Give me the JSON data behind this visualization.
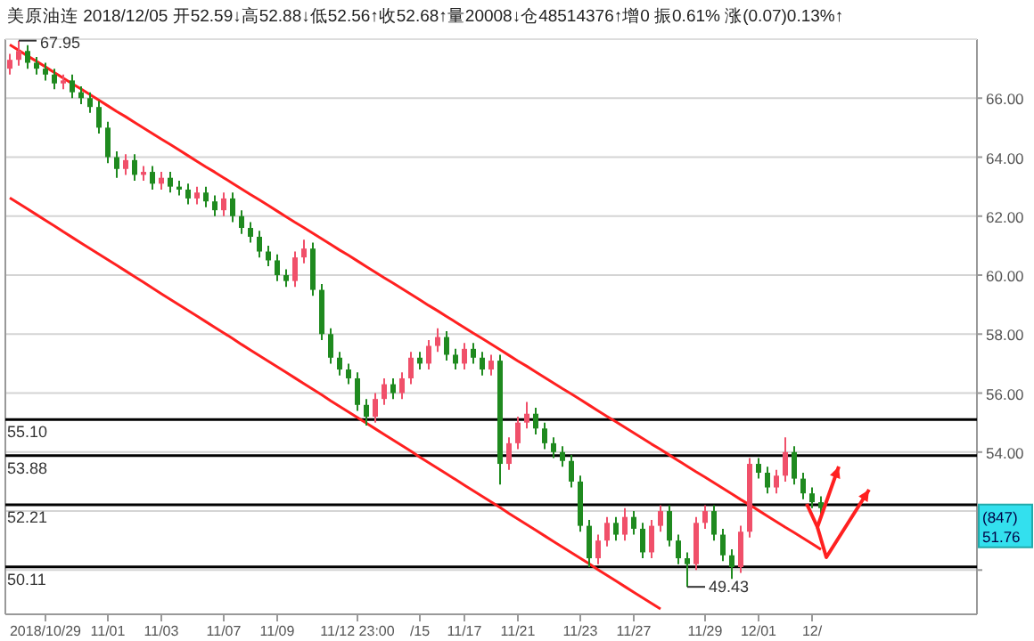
{
  "chart_data": {
    "type": "candlestick",
    "title": "美原油连 2018/12/05 开52.59↓高52.88↓低52.56↑收52.68↑量20008↓仓48514376↑增0 振0.61% 涨(0.07)0.13%↑",
    "categories": [
      null,
      null,
      null,
      null,
      "2018/10/29",
      null,
      null,
      null,
      null,
      null,
      null,
      "11/01",
      null,
      null,
      null,
      null,
      null,
      "11/03",
      null,
      null,
      null,
      null,
      null,
      null,
      "11/07",
      null,
      null,
      null,
      null,
      null,
      "11/09",
      null,
      null,
      null,
      null,
      null,
      null,
      null,
      null,
      "11/12 23:00",
      null,
      null,
      null,
      null,
      null,
      null,
      "/15",
      null,
      null,
      null,
      null,
      "11/17",
      null,
      null,
      null,
      null,
      null,
      "11/21",
      null,
      null,
      null,
      null,
      null,
      null,
      "11/23",
      null,
      null,
      null,
      null,
      null,
      "11/27",
      null,
      null,
      null,
      null,
      null,
      null,
      null,
      "11/29",
      null,
      null,
      null,
      null,
      null,
      "12/01",
      null,
      null,
      null,
      null,
      null,
      "12/",
      null,
      null,
      null,
      null,
      null,
      null,
      null,
      null,
      null,
      null,
      null,
      null,
      null,
      null,
      null,
      null,
      null,
      null
    ],
    "ohlc": [
      [
        67.0,
        67.5,
        66.8,
        67.3
      ],
      [
        67.3,
        67.95,
        67.1,
        67.6
      ],
      [
        67.6,
        67.8,
        67.0,
        67.2
      ],
      [
        67.2,
        67.4,
        66.8,
        67.0
      ],
      [
        67.0,
        67.2,
        66.6,
        66.8
      ],
      [
        66.8,
        67.0,
        66.3,
        66.5
      ],
      [
        66.5,
        66.8,
        66.3,
        66.6
      ],
      [
        66.6,
        66.8,
        66.0,
        66.2
      ],
      [
        66.2,
        66.4,
        65.8,
        66.0
      ],
      [
        66.0,
        66.2,
        65.5,
        65.7
      ],
      [
        65.7,
        65.9,
        64.8,
        65.0
      ],
      [
        65.0,
        65.2,
        63.8,
        64.0
      ],
      [
        64.0,
        64.2,
        63.3,
        63.6
      ],
      [
        63.6,
        64.1,
        63.4,
        63.9
      ],
      [
        63.9,
        64.1,
        63.2,
        63.4
      ],
      [
        63.4,
        63.7,
        63.2,
        63.5
      ],
      [
        63.5,
        63.7,
        62.9,
        63.1
      ],
      [
        63.1,
        63.5,
        62.9,
        63.3
      ],
      [
        63.3,
        63.5,
        62.8,
        63.0
      ],
      [
        63.0,
        63.2,
        62.7,
        62.9
      ],
      [
        62.9,
        63.1,
        62.4,
        62.6
      ],
      [
        62.6,
        63.0,
        62.4,
        62.8
      ],
      [
        62.8,
        63.0,
        62.3,
        62.5
      ],
      [
        62.5,
        62.7,
        62.0,
        62.2
      ],
      [
        62.2,
        62.8,
        62.0,
        62.6
      ],
      [
        62.6,
        62.8,
        61.8,
        62.0
      ],
      [
        62.0,
        62.2,
        61.4,
        61.6
      ],
      [
        61.6,
        61.8,
        61.1,
        61.3
      ],
      [
        61.3,
        61.5,
        60.6,
        60.8
      ],
      [
        60.8,
        61.0,
        60.3,
        60.5
      ],
      [
        60.5,
        60.7,
        59.8,
        60.0
      ],
      [
        60.0,
        60.2,
        59.6,
        59.8
      ],
      [
        59.8,
        60.8,
        59.6,
        60.6
      ],
      [
        60.6,
        61.2,
        60.4,
        60.9
      ],
      [
        60.9,
        61.1,
        59.3,
        59.5
      ],
      [
        59.5,
        59.7,
        57.8,
        58.0
      ],
      [
        58.0,
        58.2,
        57.0,
        57.2
      ],
      [
        57.2,
        57.4,
        56.6,
        56.8
      ],
      [
        56.8,
        57.0,
        56.3,
        56.5
      ],
      [
        56.5,
        56.7,
        55.4,
        55.6
      ],
      [
        55.6,
        55.8,
        54.9,
        55.2
      ],
      [
        55.2,
        56.0,
        55.0,
        55.8
      ],
      [
        55.8,
        56.5,
        55.6,
        56.3
      ],
      [
        56.3,
        56.5,
        55.8,
        56.0
      ],
      [
        56.0,
        56.7,
        55.8,
        56.5
      ],
      [
        56.5,
        57.4,
        56.3,
        57.2
      ],
      [
        57.2,
        57.4,
        56.8,
        57.0
      ],
      [
        57.0,
        57.8,
        56.8,
        57.6
      ],
      [
        57.6,
        58.2,
        57.4,
        57.9
      ],
      [
        57.9,
        58.1,
        57.1,
        57.3
      ],
      [
        57.3,
        57.5,
        56.8,
        57.0
      ],
      [
        57.0,
        57.7,
        56.8,
        57.5
      ],
      [
        57.5,
        57.7,
        57.0,
        57.2
      ],
      [
        57.2,
        57.4,
        56.6,
        56.8
      ],
      [
        56.8,
        57.3,
        56.6,
        57.1
      ],
      [
        57.1,
        57.3,
        52.9,
        53.6
      ],
      [
        53.6,
        54.5,
        53.4,
        54.3
      ],
      [
        54.3,
        55.2,
        54.1,
        55.0
      ],
      [
        55.0,
        55.7,
        54.8,
        55.3
      ],
      [
        55.3,
        55.5,
        54.6,
        54.8
      ],
      [
        54.8,
        55.0,
        54.1,
        54.3
      ],
      [
        54.3,
        54.5,
        53.8,
        54.0
      ],
      [
        54.0,
        54.2,
        53.5,
        53.7
      ],
      [
        53.7,
        53.9,
        52.8,
        53.0
      ],
      [
        53.0,
        53.2,
        51.3,
        51.5
      ],
      [
        51.5,
        51.7,
        50.1,
        50.4
      ],
      [
        50.4,
        51.2,
        50.2,
        51.0
      ],
      [
        51.0,
        51.8,
        50.8,
        51.6
      ],
      [
        51.6,
        51.8,
        51.0,
        51.2
      ],
      [
        51.2,
        52.1,
        51.0,
        51.8
      ],
      [
        51.8,
        52.0,
        51.2,
        51.4
      ],
      [
        51.4,
        51.6,
        50.4,
        50.6
      ],
      [
        50.6,
        51.7,
        50.4,
        51.5
      ],
      [
        51.5,
        52.2,
        51.3,
        52.0
      ],
      [
        52.0,
        52.2,
        50.8,
        51.0
      ],
      [
        51.0,
        51.2,
        50.2,
        50.4
      ],
      [
        50.4,
        50.6,
        49.43,
        50.2
      ],
      [
        50.2,
        51.8,
        50.0,
        51.6
      ],
      [
        51.6,
        52.2,
        51.4,
        52.0
      ],
      [
        52.0,
        52.2,
        51.0,
        51.2
      ],
      [
        51.2,
        51.4,
        50.3,
        50.5
      ],
      [
        50.5,
        50.7,
        49.7,
        50.1
      ],
      [
        50.1,
        51.5,
        49.9,
        51.3
      ],
      [
        51.3,
        53.8,
        51.1,
        53.6
      ],
      [
        53.6,
        53.8,
        53.1,
        53.3
      ],
      [
        53.3,
        53.5,
        52.6,
        52.8
      ],
      [
        52.8,
        53.4,
        52.6,
        53.2
      ],
      [
        53.2,
        54.5,
        53.0,
        54.0
      ],
      [
        54.0,
        54.2,
        52.9,
        53.1
      ],
      [
        53.1,
        53.3,
        52.4,
        52.6
      ],
      [
        52.6,
        52.8,
        52.1,
        52.3
      ],
      [
        52.3,
        52.5,
        51.9,
        52.1
      ],
      null,
      null,
      null,
      null,
      null,
      null,
      null,
      null,
      null,
      null,
      null,
      null,
      null,
      null,
      null,
      null,
      null
    ],
    "colors": [
      "#f0506a",
      "#f0506a",
      "#1f8a1f",
      "#1f8a1f",
      "#1f8a1f",
      "#1f8a1f",
      "#f0506a",
      "#1f8a1f",
      "#1f8a1f",
      "#1f8a1f",
      "#1f8a1f",
      "#1f8a1f",
      "#1f8a1f",
      "#f0506a",
      "#1f8a1f",
      "#f0506a",
      "#1f8a1f",
      "#f0506a",
      "#1f8a1f",
      "#1f8a1f",
      "#1f8a1f",
      "#f0506a",
      "#1f8a1f",
      "#1f8a1f",
      "#f0506a",
      "#1f8a1f",
      "#1f8a1f",
      "#1f8a1f",
      "#1f8a1f",
      "#1f8a1f",
      "#1f8a1f",
      "#1f8a1f",
      "#f0506a",
      "#f0506a",
      "#1f8a1f",
      "#1f8a1f",
      "#1f8a1f",
      "#1f8a1f",
      "#1f8a1f",
      "#1f8a1f",
      "#1f8a1f",
      "#f0506a",
      "#f0506a",
      "#1f8a1f",
      "#f0506a",
      "#f0506a",
      "#1f8a1f",
      "#f0506a",
      "#f0506a",
      "#1f8a1f",
      "#1f8a1f",
      "#f0506a",
      "#1f8a1f",
      "#1f8a1f",
      "#f0506a",
      "#1f8a1f",
      "#f0506a",
      "#f0506a",
      "#f0506a",
      "#1f8a1f",
      "#1f8a1f",
      "#1f8a1f",
      "#1f8a1f",
      "#1f8a1f",
      "#1f8a1f",
      "#1f8a1f",
      "#f0506a",
      "#f0506a",
      "#1f8a1f",
      "#f0506a",
      "#1f8a1f",
      "#1f8a1f",
      "#f0506a",
      "#f0506a",
      "#1f8a1f",
      "#1f8a1f",
      "#1f8a1f",
      "#f0506a",
      "#f0506a",
      "#1f8a1f",
      "#1f8a1f",
      "#1f8a1f",
      "#f0506a",
      "#f0506a",
      "#1f8a1f",
      "#1f8a1f",
      "#f0506a",
      "#f0506a",
      "#1f8a1f",
      "#1f8a1f",
      "#1f8a1f",
      "#1f8a1f",
      null,
      null,
      null,
      null,
      null,
      null,
      null,
      null,
      null,
      null,
      null,
      null,
      null,
      null,
      null,
      null,
      null
    ],
    "series": [
      {
        "type": "line",
        "color": "#ff2020",
        "values": [
          67.81,
          67.62,
          67.43,
          67.25,
          67.06,
          66.87,
          66.68,
          66.49,
          66.31,
          66.12,
          65.93,
          65.74,
          65.55,
          65.37,
          65.18,
          64.99,
          64.8,
          64.61,
          64.43,
          64.24,
          64.05,
          63.86,
          63.67,
          63.49,
          63.3,
          63.11,
          62.92,
          62.73,
          62.55,
          62.36,
          62.17,
          61.98,
          61.79,
          61.61,
          61.42,
          61.23,
          61.04,
          60.85,
          60.67,
          60.48,
          60.29,
          60.1,
          59.91,
          59.73,
          59.54,
          59.35,
          59.16,
          58.97,
          58.79,
          58.6,
          58.41,
          58.22,
          58.03,
          57.85,
          57.66,
          57.47,
          57.28,
          57.09,
          56.91,
          56.72,
          56.53,
          56.34,
          56.15,
          55.97,
          55.78,
          55.59,
          55.4,
          55.21,
          55.03,
          54.84,
          54.65,
          54.46,
          54.27,
          54.09,
          53.9,
          53.71,
          53.52,
          53.33,
          53.15,
          52.96,
          52.77,
          52.58,
          52.39,
          52.21,
          52.02,
          51.83,
          51.64,
          51.45,
          51.27,
          51.08,
          50.89,
          50.7,
          null,
          null,
          null,
          null,
          null,
          null,
          null,
          null,
          null,
          null,
          null,
          null,
          null,
          null,
          null,
          null,
          null
        ]
      },
      {
        "type": "line",
        "color": "#ff2020",
        "values": [
          62.62,
          62.43,
          62.24,
          62.05,
          61.86,
          61.67,
          61.47,
          61.28,
          61.09,
          60.9,
          60.71,
          60.52,
          60.33,
          60.14,
          59.95,
          59.76,
          59.56,
          59.37,
          59.18,
          58.99,
          58.8,
          58.61,
          58.42,
          58.23,
          58.04,
          57.85,
          57.65,
          57.46,
          57.27,
          57.08,
          56.89,
          56.7,
          56.51,
          56.32,
          56.13,
          55.94,
          55.74,
          55.55,
          55.36,
          55.17,
          54.98,
          54.79,
          54.6,
          54.41,
          54.22,
          54.03,
          53.83,
          53.64,
          53.45,
          53.26,
          53.07,
          52.88,
          52.69,
          52.5,
          52.31,
          52.12,
          51.92,
          51.73,
          51.54,
          51.35,
          51.16,
          50.97,
          50.78,
          50.59,
          50.4,
          50.21,
          50.01,
          49.82,
          49.63,
          49.44,
          49.25,
          49.06,
          48.87,
          48.68,
          null,
          null,
          null,
          null,
          null,
          null,
          null,
          null,
          null,
          null,
          null,
          null,
          null,
          null,
          null,
          null,
          null,
          null,
          null,
          null,
          null,
          null,
          null,
          null,
          null,
          null,
          null,
          null,
          null,
          null,
          null,
          null,
          null,
          null,
          null
        ]
      }
    ],
    "ylim": [
      48.5,
      68.0
    ],
    "yticks": [
      {
        "value": 50,
        "label": null
      },
      {
        "value": 52,
        "label": null
      },
      {
        "value": 54,
        "label": "54.00"
      },
      {
        "value": 56,
        "label": "56.00"
      },
      {
        "value": 58,
        "label": "58.00"
      },
      {
        "value": 60,
        "label": "60.00"
      },
      {
        "value": 62,
        "label": "62.00"
      },
      {
        "value": 64,
        "label": "64.00"
      },
      {
        "value": 66,
        "label": "66.00"
      }
    ],
    "grid": "y",
    "ref_lines": [
      {
        "axis": "y",
        "value": 55.1,
        "label": "55.10",
        "color": "#000000"
      },
      {
        "axis": "y",
        "value": 53.88,
        "label": "53.88",
        "color": "#000000"
      },
      {
        "axis": "y",
        "value": 52.21,
        "label": "52.21",
        "color": "#000000"
      },
      {
        "axis": "y",
        "value": 50.11,
        "label": "50.11",
        "color": "#000000"
      }
    ],
    "annotations": [
      "67.95",
      {
        "text": "49.43",
        "y": 49.43
      },
      "(847)\n51.76"
    ]
  }
}
